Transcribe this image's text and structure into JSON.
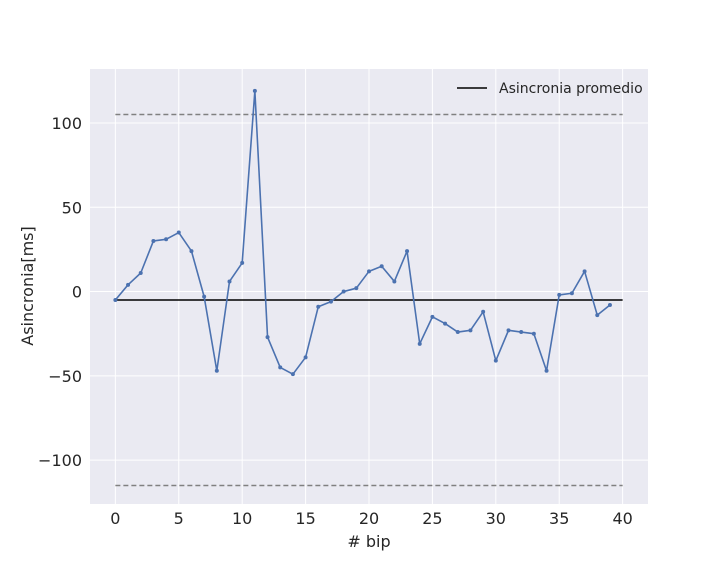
{
  "chart_data": {
    "type": "line",
    "title": "",
    "xlabel": "# bip",
    "ylabel": "Asincronia[ms]",
    "xlim": [
      -2,
      42
    ],
    "ylim": [
      -126,
      132
    ],
    "xticks": [
      0,
      5,
      10,
      15,
      20,
      25,
      30,
      35,
      40
    ],
    "yticks": [
      -100,
      -50,
      0,
      50,
      100
    ],
    "xtick_labels": [
      "0",
      "5",
      "10",
      "15",
      "20",
      "25",
      "30",
      "35",
      "40"
    ],
    "ytick_labels": [
      "−100",
      "−50",
      "0",
      "50",
      "100"
    ],
    "grid": true,
    "legend_position": "top-right",
    "colors": {
      "series": "#4c72b0",
      "mean": "#000000",
      "bounds": "#808080",
      "plot_bg": "#eaeaf2",
      "grid": "#ffffff"
    },
    "series": [
      {
        "values": [
          -5,
          4,
          11,
          30,
          31,
          35,
          24,
          -3,
          -47,
          6,
          17,
          119,
          -27,
          -45,
          -49,
          -39,
          -9,
          -6,
          0,
          2,
          12,
          15,
          6,
          24,
          -31,
          -15,
          -19,
          -24,
          -23,
          -12,
          -41,
          -23,
          -24,
          -25,
          -47,
          -2,
          -1,
          12,
          -14,
          -8
        ]
      },
      {
        "name": "Asincronia promedio",
        "x": [
          0,
          40
        ],
        "y": [
          -5,
          -5
        ]
      },
      {
        "x": [
          0,
          40
        ],
        "y": [
          105,
          105
        ]
      },
      {
        "x": [
          0,
          40
        ],
        "y": [
          -115,
          -115
        ]
      }
    ]
  }
}
